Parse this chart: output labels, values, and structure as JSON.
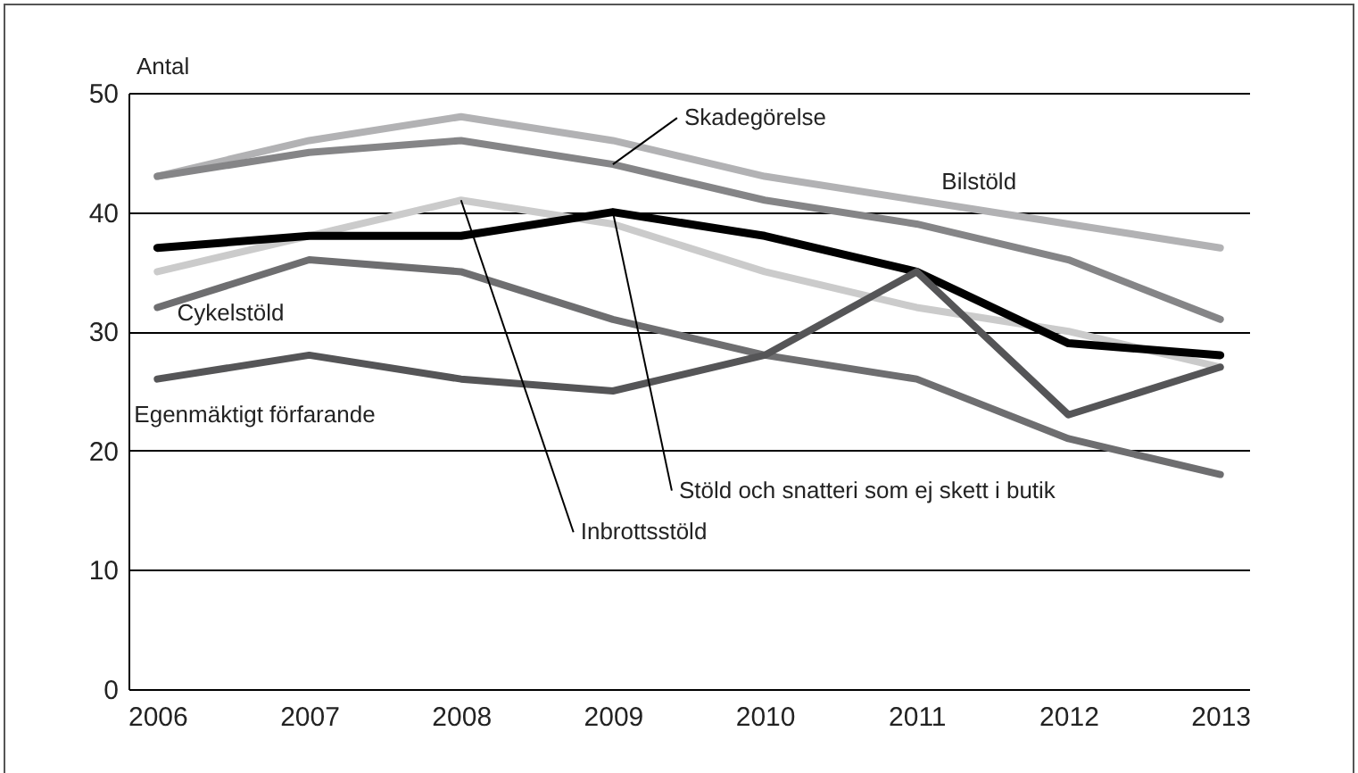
{
  "chart_data": {
    "type": "line",
    "ylabel": "Antal",
    "categories": [
      "2006",
      "2007",
      "2008",
      "2009",
      "2010",
      "2011",
      "2012",
      "2013"
    ],
    "series": [
      {
        "name": "Bilstöld",
        "color": "#b2b2b4",
        "values": [
          43,
          46,
          48,
          46,
          43,
          41,
          39,
          37
        ]
      },
      {
        "name": "Skadegörelse",
        "color": "#858587",
        "values": [
          43,
          45,
          46,
          44,
          41,
          39,
          36,
          31
        ]
      },
      {
        "name": "Inbrottsstöld",
        "color": "#cbcbcb",
        "values": [
          35,
          38,
          41,
          39,
          35,
          32,
          30,
          27
        ]
      },
      {
        "name": "Stöld och snatteri som ej skett i butik",
        "color": "#000000",
        "values": [
          37,
          38,
          38,
          40,
          38,
          35,
          29,
          28
        ]
      },
      {
        "name": "Cykelstöld",
        "color": "#6e6e70",
        "values": [
          32,
          36,
          35,
          31,
          28,
          26,
          21,
          18
        ]
      },
      {
        "name": "Egenmäktigt förfarande",
        "color": "#555557",
        "values": [
          26,
          28,
          26,
          25,
          28,
          35,
          23,
          27
        ]
      }
    ],
    "ylim": [
      0,
      50
    ],
    "yticks": [
      0,
      10,
      20,
      30,
      40,
      50
    ],
    "grid": "y",
    "legend": false,
    "marker": "none",
    "line_style": "solid"
  }
}
